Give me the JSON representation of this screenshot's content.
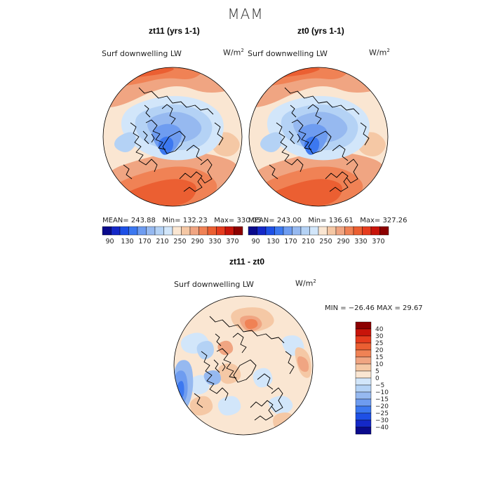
{
  "title": "MAM",
  "panels": [
    {
      "title": "zt11 (yrs 1-1)",
      "field": "Surf downwelling LW",
      "units_base": "W/m",
      "units_exp": "2",
      "stats": {
        "mean_label": "MEAN=",
        "mean": "243.88",
        "min_label": "Min=",
        "min": "132.23",
        "max_label": "Max=",
        "max": "330.05"
      }
    },
    {
      "title": "zt0 (yrs 1-1)",
      "field": "Surf downwelling LW",
      "units_base": "W/m",
      "units_exp": "2",
      "stats": {
        "mean_label": "MEAN=",
        "mean": "243.00",
        "min_label": "Min=",
        "min": "136.61",
        "max_label": "Max=",
        "max": "327.26"
      }
    },
    {
      "title": "zt11 - zt0",
      "field": "Surf downwelling LW",
      "units_base": "W/m",
      "units_exp": "2",
      "stats": {
        "text": "MIN = −26.46 MAX =  29.67"
      }
    }
  ],
  "colorbar_main": {
    "levels": [
      "90",
      "130",
      "170",
      "210",
      "250",
      "290",
      "330",
      "370"
    ],
    "colors": [
      "#0a0a8c",
      "#1428c8",
      "#1e50e6",
      "#3c78f0",
      "#6e9cf0",
      "#96b9f0",
      "#b4d2f5",
      "#d2e6fa",
      "#fae6d2",
      "#f5c8a5",
      "#f0a582",
      "#f08255",
      "#eb5f32",
      "#e63c1e",
      "#c8140a",
      "#8c0000"
    ]
  },
  "colorbar_diff": {
    "labels": [
      "40",
      "30",
      "25",
      "20",
      "15",
      "10",
      "5",
      "0",
      "−5",
      "−10",
      "−15",
      "−20",
      "−25",
      "−30",
      "−40"
    ],
    "colors": [
      "#8c0000",
      "#c8140a",
      "#e63c1e",
      "#eb5f32",
      "#f08255",
      "#f0a582",
      "#f5c8a5",
      "#fae6d2",
      "#d2e6fa",
      "#b4d2f5",
      "#96b9f0",
      "#6e9cf0",
      "#3c78f0",
      "#1e50e6",
      "#1428c8",
      "#0a0a8c"
    ]
  },
  "chart_data": {
    "type": "heatmap",
    "projection": "north polar stereographic",
    "season": "MAM",
    "variable": "Surf downwelling LW",
    "units": "W/m^2",
    "maps": [
      {
        "name": "zt11 (yrs 1-1)",
        "mean": 243.88,
        "min": 132.23,
        "max": 330.05,
        "contour_levels": [
          90,
          130,
          170,
          210,
          250,
          290,
          330,
          370
        ]
      },
      {
        "name": "zt0 (yrs 1-1)",
        "mean": 243.0,
        "min": 136.61,
        "max": 327.26,
        "contour_levels": [
          90,
          130,
          170,
          210,
          250,
          290,
          330,
          370
        ]
      },
      {
        "name": "zt11 - zt0",
        "min": -26.46,
        "max": 29.67,
        "contour_levels": [
          -40,
          -30,
          -25,
          -20,
          -15,
          -10,
          -5,
          0,
          5,
          10,
          15,
          20,
          25,
          30,
          40
        ]
      }
    ]
  }
}
